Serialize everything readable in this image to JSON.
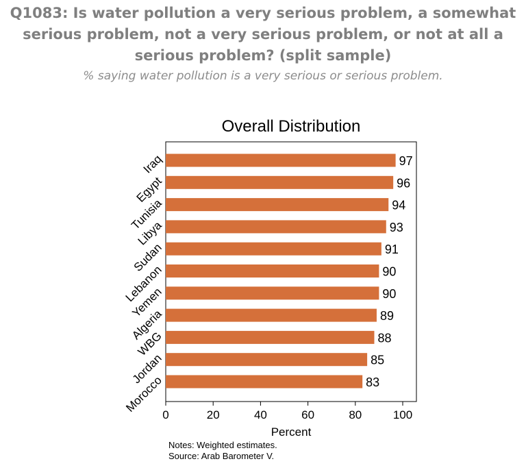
{
  "header": {
    "title": "Q1083: Is water pollution a very serious problem, a somewhat serious problem, not a very serious problem, or not at all a serious problem? (split sample)",
    "subtitle": "% saying water pollution is a very serious or serious problem."
  },
  "chart_data": {
    "type": "bar",
    "orientation": "horizontal",
    "title": "Overall Distribution",
    "xlabel": "Percent",
    "ylabel": "",
    "xlim": [
      0,
      100
    ],
    "xticks": [
      0,
      20,
      40,
      60,
      80,
      100
    ],
    "categories": [
      "Iraq",
      "Egypt",
      "Tunisia",
      "Libya",
      "Sudan",
      "Lebanon",
      "Yemen",
      "Algeria",
      "WBG",
      "Jordan",
      "Morocco"
    ],
    "values": [
      97,
      96,
      94,
      93,
      91,
      90,
      90,
      89,
      88,
      85,
      83
    ],
    "bar_color": "#d5703a",
    "grid": false,
    "legend": "none"
  },
  "notes": {
    "line1": "Notes: Weighted estimates.",
    "line2": "Source: Arab Barometer V."
  }
}
